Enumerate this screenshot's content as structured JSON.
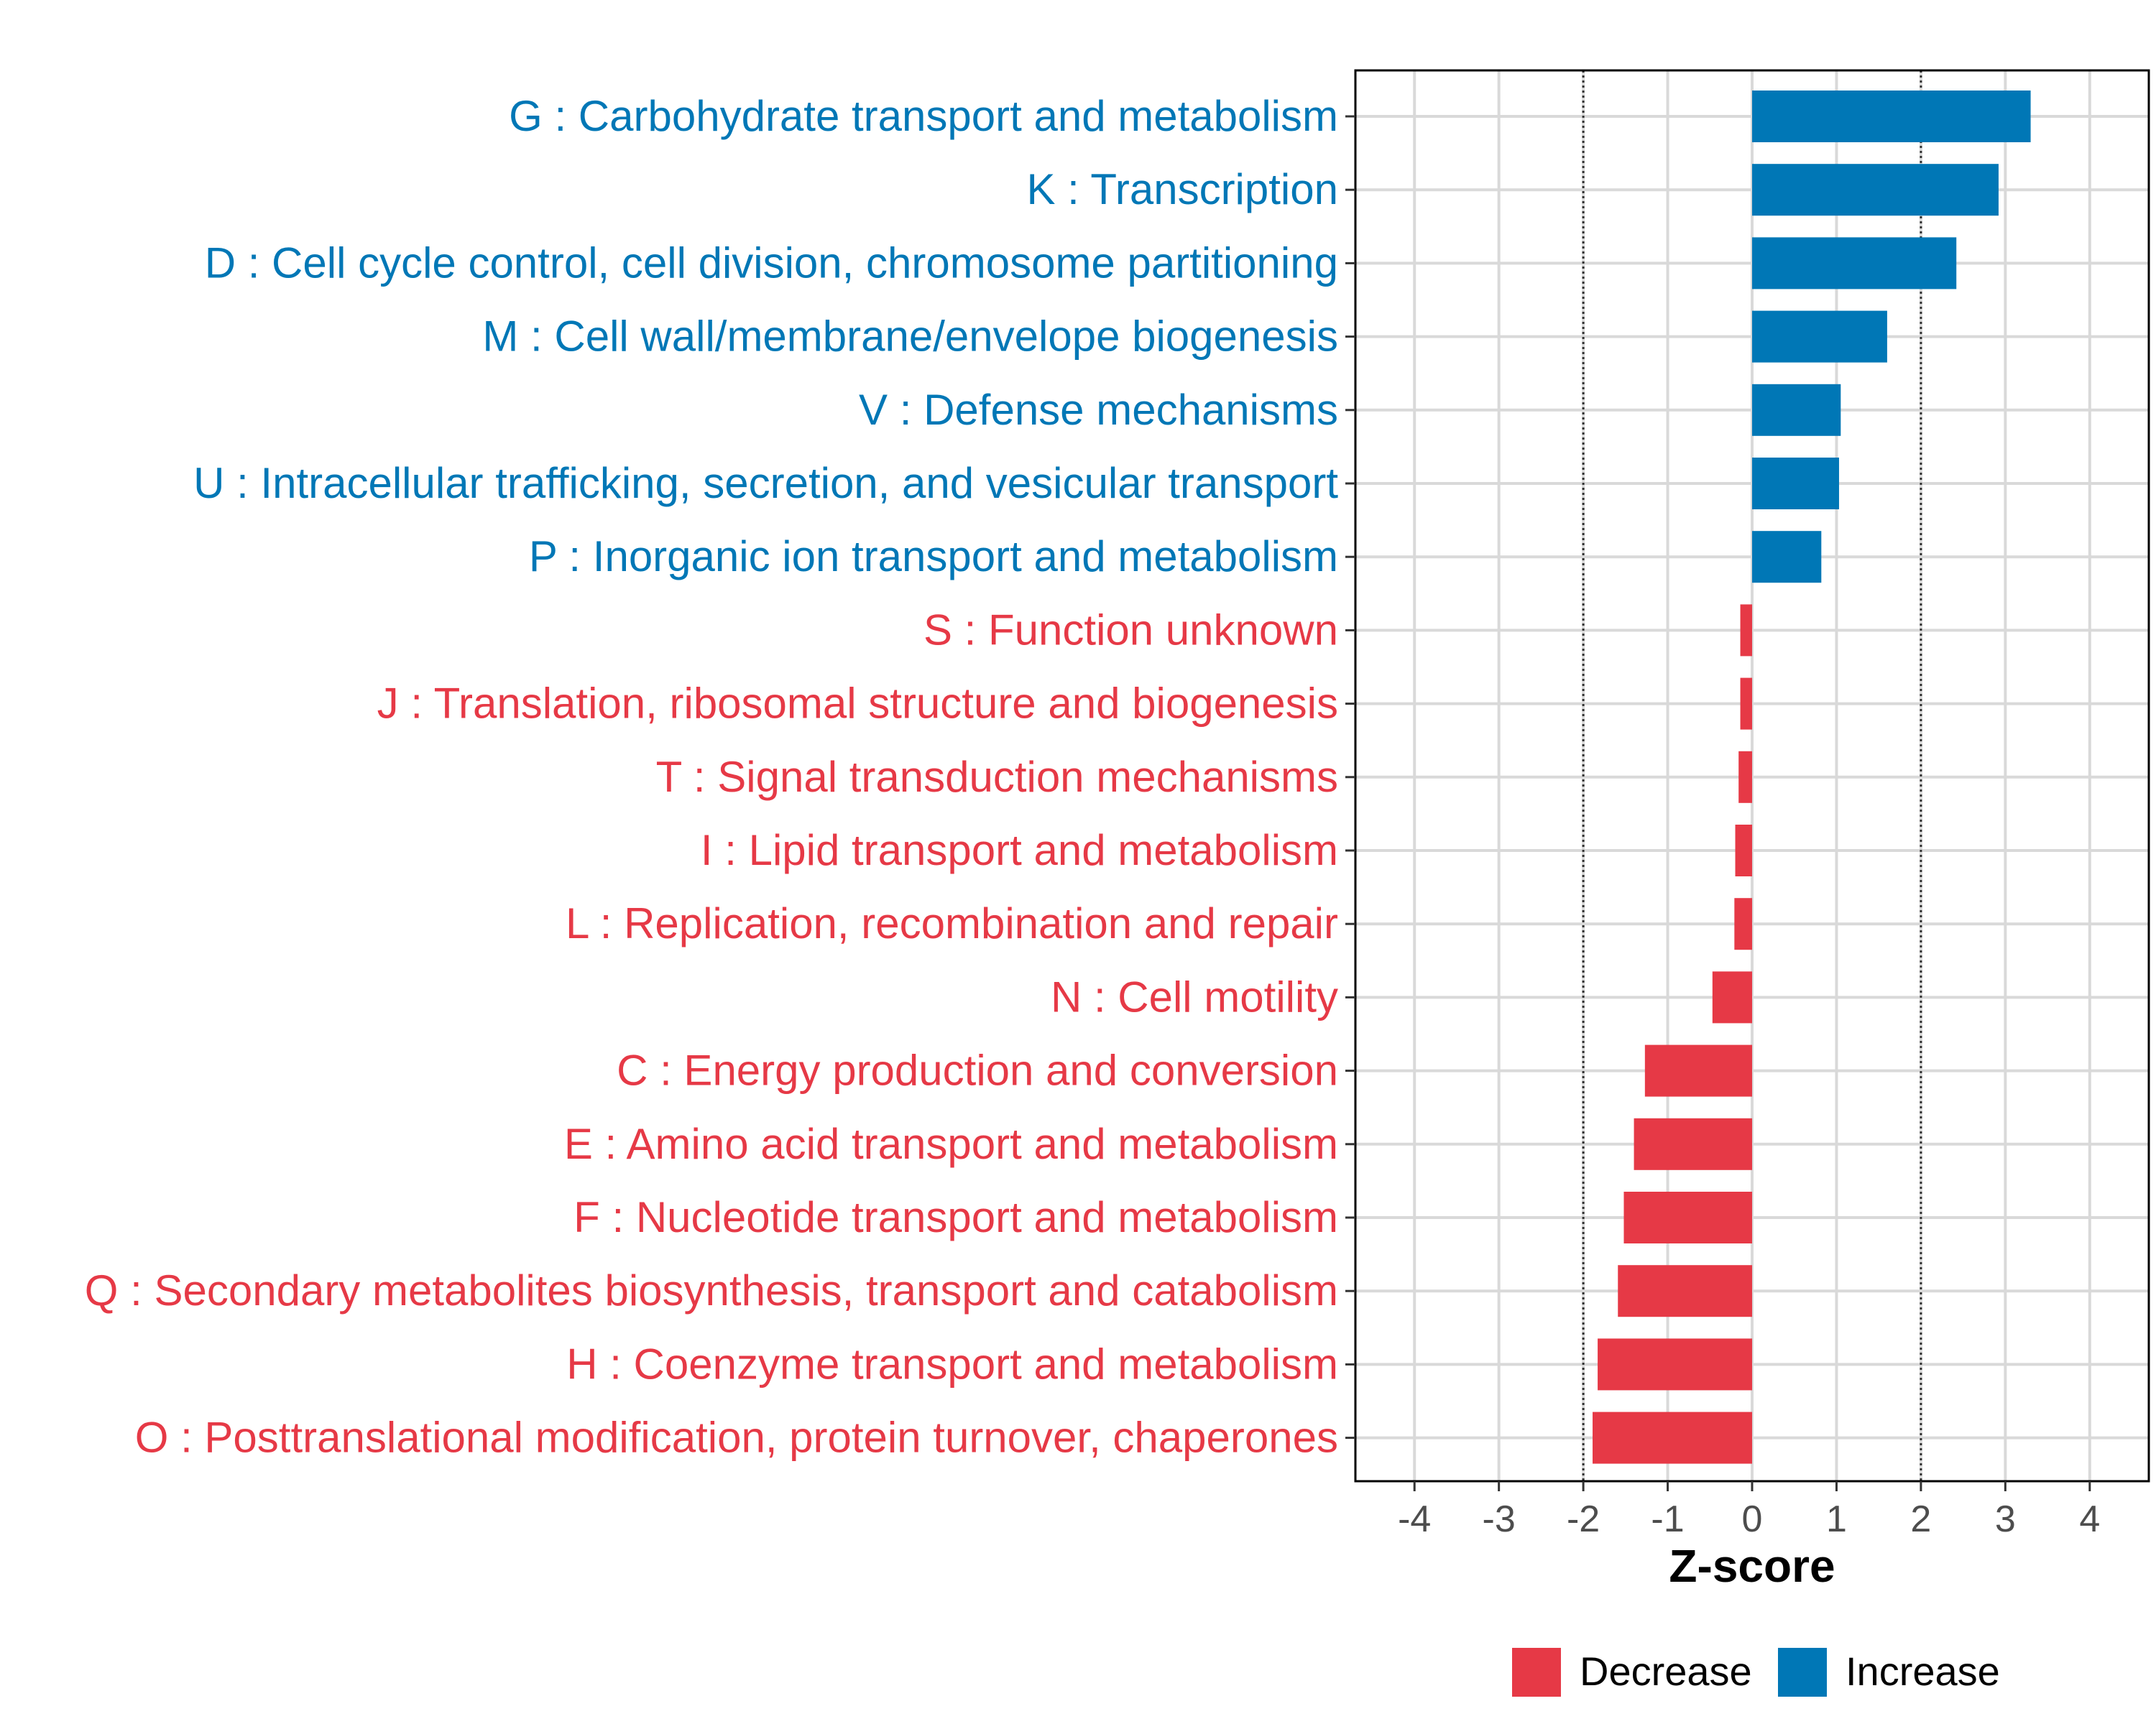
{
  "chart_data": {
    "type": "bar",
    "orientation": "horizontal",
    "xlabel": "Z-score",
    "xlim": [
      -4.7,
      4.7
    ],
    "xticks": [
      -4,
      -3,
      -2,
      -1,
      0,
      1,
      2,
      3,
      4
    ],
    "xtick_labels": [
      "-4",
      "-3",
      "-2",
      "-1",
      "0",
      "1",
      "2",
      "3",
      "4"
    ],
    "reference_lines": [
      -2,
      2
    ],
    "grid": true,
    "legend_position": "bottom",
    "colors": {
      "Decrease": "#E63946",
      "Increase": "#0077B6"
    },
    "legend": [
      {
        "label": "Decrease",
        "color": "#E63946"
      },
      {
        "label": "Increase",
        "color": "#0077B6"
      }
    ],
    "categories": [
      "G : Carbohydrate transport and metabolism",
      "K : Transcription",
      "D : Cell cycle control, cell division, chromosome partitioning",
      "M : Cell wall/membrane/envelope biogenesis",
      "V : Defense mechanisms",
      "U : Intracellular trafficking, secretion, and vesicular transport",
      "P : Inorganic ion transport and metabolism",
      "S : Function unknown",
      "J : Translation, ribosomal structure and biogenesis",
      "T : Signal transduction mechanisms",
      "I : Lipid transport and metabolism",
      "L : Replication, recombination and repair",
      "N : Cell motility",
      "C : Energy production and conversion",
      "E : Amino acid transport and metabolism",
      "F : Nucleotide transport and metabolism",
      "Q : Secondary metabolites biosynthesis, transport and catabolism",
      "H : Coenzyme transport and metabolism",
      "O : Posttranslational modification, protein turnover, chaperones"
    ],
    "values": [
      3.3,
      2.92,
      2.42,
      1.6,
      1.05,
      1.03,
      0.82,
      -0.14,
      -0.14,
      -0.16,
      -0.2,
      -0.21,
      -0.47,
      -1.27,
      -1.4,
      -1.52,
      -1.59,
      -1.83,
      -1.89
    ],
    "groups": [
      "Increase",
      "Increase",
      "Increase",
      "Increase",
      "Increase",
      "Increase",
      "Increase",
      "Decrease",
      "Decrease",
      "Decrease",
      "Decrease",
      "Decrease",
      "Decrease",
      "Decrease",
      "Decrease",
      "Decrease",
      "Decrease",
      "Decrease",
      "Decrease"
    ]
  }
}
